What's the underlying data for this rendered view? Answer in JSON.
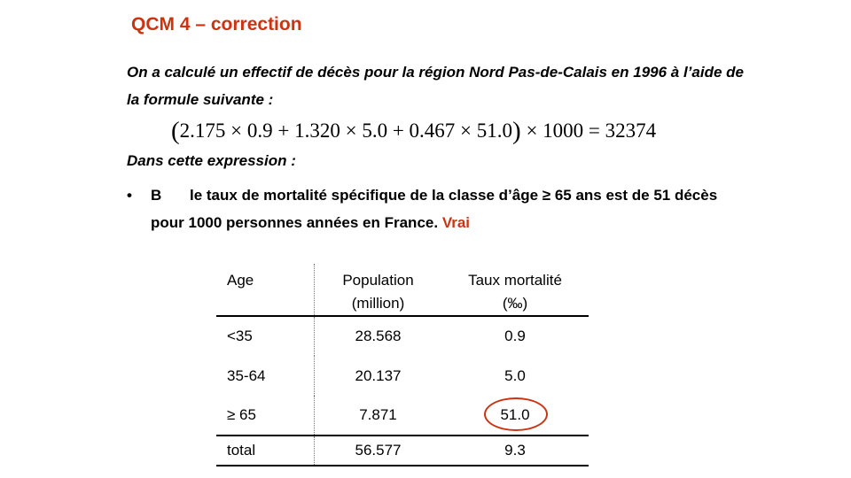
{
  "slide": {
    "title": "QCM 4 – correction",
    "intro": "On a calculé un effectif de décès pour la région Nord Pas-de-Calais en 1996  à l’aide de la formule suivante :",
    "formula": {
      "open_paren": "(",
      "body": "2.175 × 0.9 + 1.320 × 5.0 + 0.467 × 51.0",
      "close_paren": ")",
      "tail": "× 1000 = 32374"
    },
    "subheading": "Dans cette expression :",
    "bullet": {
      "marker": "•",
      "letter": "B",
      "text": "le taux de mortalité spécifique de la classe d’âge ≥ 65 ans est de 51 décès pour 1000 personnes années en France.",
      "verdict": "Vrai"
    }
  },
  "table": {
    "headers": {
      "age": "Age",
      "population": "Population",
      "population_unit": "(million)",
      "rate": "Taux mortalité",
      "rate_unit": "(‰)"
    },
    "rows": [
      {
        "age": "<35",
        "population": "28.568",
        "rate": "0.9"
      },
      {
        "age": "35-64",
        "population": "20.137",
        "rate": "5.0"
      },
      {
        "age": "≥ 65",
        "population": "7.871",
        "rate": "51.0"
      }
    ],
    "total": {
      "age": "total",
      "population": "56.577",
      "rate": "9.3"
    }
  },
  "colors": {
    "accent": "#cc3311"
  }
}
